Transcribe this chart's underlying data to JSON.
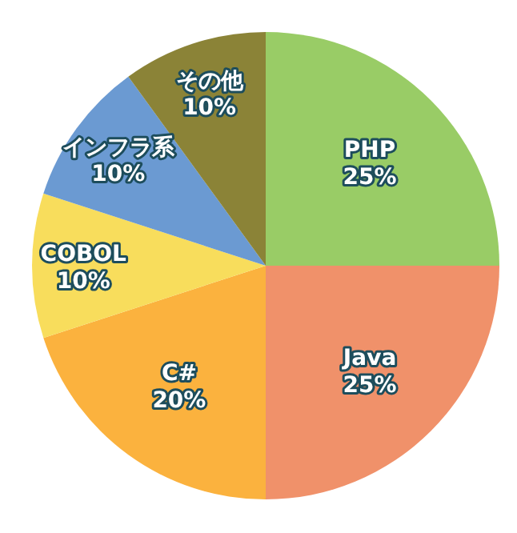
{
  "chart_data": {
    "type": "pie",
    "categories": [
      "PHP",
      "Java",
      "C#",
      "COBOL",
      "インフラ系",
      "その他"
    ],
    "values": [
      25,
      25,
      20,
      10,
      10,
      10
    ],
    "colors": [
      "#99cc66",
      "#f0916a",
      "#fbb23e",
      "#f8dd5c",
      "#6b9ad2",
      "#8b8337"
    ],
    "value_labels": [
      "25%",
      "25%",
      "20%",
      "10%",
      "10%",
      "10%"
    ]
  }
}
